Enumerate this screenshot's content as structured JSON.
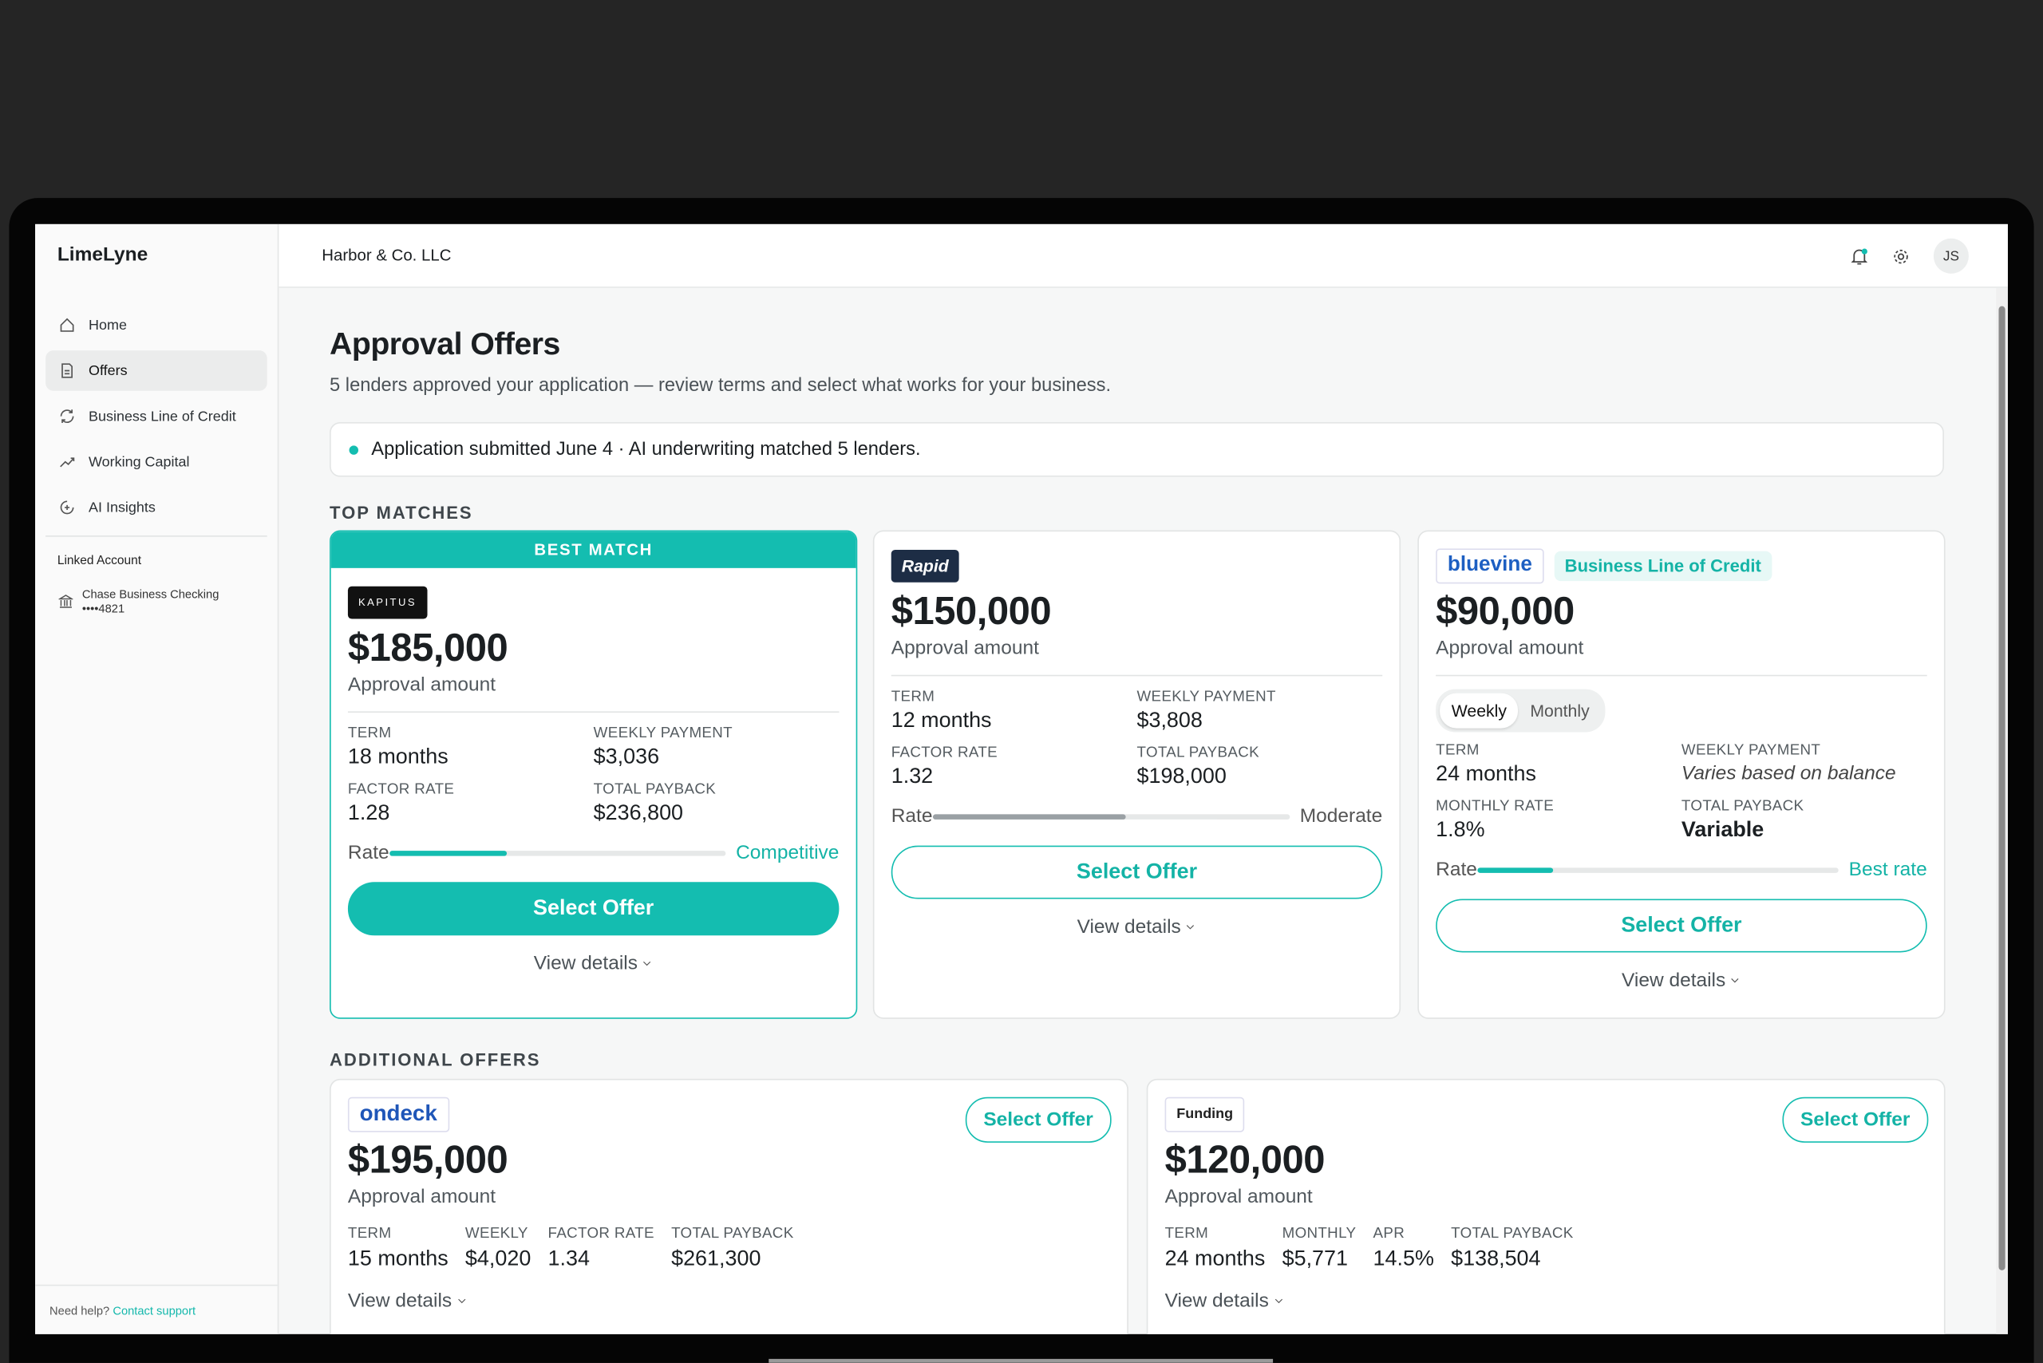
{
  "sidebar": {
    "brand": "LimeLyne",
    "nav": [
      "Home",
      "Offers",
      "Business Line of Credit",
      "Working Capital",
      "AI Insights"
    ],
    "linked_account": {
      "heading": "Linked Account",
      "name": "Chase Business Checking",
      "number": "••••4821"
    },
    "help": {
      "text": "Need help?",
      "link": "Contact support"
    }
  },
  "header": {
    "company": "Harbor & Co. LLC",
    "avatar": "JS"
  },
  "page": {
    "title": "Approval Offers",
    "subtitle": "5 lenders approved your application — review terms and select what works for your business.",
    "notice": "Application submitted June 4 · AI underwriting matched 5 lenders."
  },
  "top_matches": {
    "heading": "TOP MATCHES",
    "offers": [
      {
        "badge": "BEST MATCH",
        "logo": "KAPITUS",
        "amount": "$185,000",
        "amount_label": "Approval amount",
        "terms": [
          {
            "label": "TERM",
            "value": "18 months"
          },
          {
            "label": "WEEKLY PAYMENT",
            "value": "$3,036"
          },
          {
            "label": "FACTOR RATE",
            "value": "1.28"
          },
          {
            "label": "TOTAL PAYBACK",
            "value": "$236,800"
          }
        ],
        "rate_label": "Rate",
        "rate_text": "Competitive",
        "button": "Select Offer",
        "details": "View details"
      },
      {
        "logo": "Rapid",
        "amount": "$150,000",
        "amount_label": "Approval amount",
        "terms": [
          {
            "label": "TERM",
            "value": "12 months"
          },
          {
            "label": "WEEKLY PAYMENT",
            "value": "$3,808"
          },
          {
            "label": "FACTOR RATE",
            "value": "1.32"
          },
          {
            "label": "TOTAL PAYBACK",
            "value": "$198,000"
          }
        ],
        "rate_label": "Rate",
        "rate_text": "Moderate",
        "button": "Select Offer",
        "details": "View details"
      },
      {
        "logo": "bluevine",
        "tag": "Business Line of Credit",
        "amount": "$90,000",
        "amount_label": "Approval amount",
        "toggle": [
          "Weekly",
          "Monthly"
        ],
        "terms": [
          {
            "label": "TERM",
            "value": "24 months"
          },
          {
            "label": "WEEKLY PAYMENT",
            "value": "Varies based on balance"
          },
          {
            "label": "MONTHLY RATE",
            "value": "1.8%"
          },
          {
            "label": "TOTAL PAYBACK",
            "value": "Variable"
          }
        ],
        "rate_label": "Rate",
        "rate_text": "Best rate",
        "button": "Select Offer",
        "details": "View details"
      }
    ]
  },
  "additional_offers": {
    "heading": "ADDITIONAL OFFERS",
    "offers": [
      {
        "logo": "ondeck",
        "amount": "$195,000",
        "amount_label": "Approval amount",
        "button": "Select Offer",
        "terms": [
          {
            "label": "TERM",
            "value": "15 months"
          },
          {
            "label": "WEEKLY",
            "value": "$4,020"
          },
          {
            "label": "FACTOR RATE",
            "value": "1.34"
          },
          {
            "label": "TOTAL PAYBACK",
            "value": "$261,300"
          }
        ],
        "details": "View details"
      },
      {
        "logo": "Funding",
        "amount": "$120,000",
        "amount_label": "Approval amount",
        "button": "Select Offer",
        "terms": [
          {
            "label": "TERM",
            "value": "24 months"
          },
          {
            "label": "MONTHLY",
            "value": "$5,771"
          },
          {
            "label": "APR",
            "value": "14.5%"
          },
          {
            "label": "TOTAL PAYBACK",
            "value": "$138,504"
          }
        ],
        "details": "View details"
      }
    ]
  }
}
